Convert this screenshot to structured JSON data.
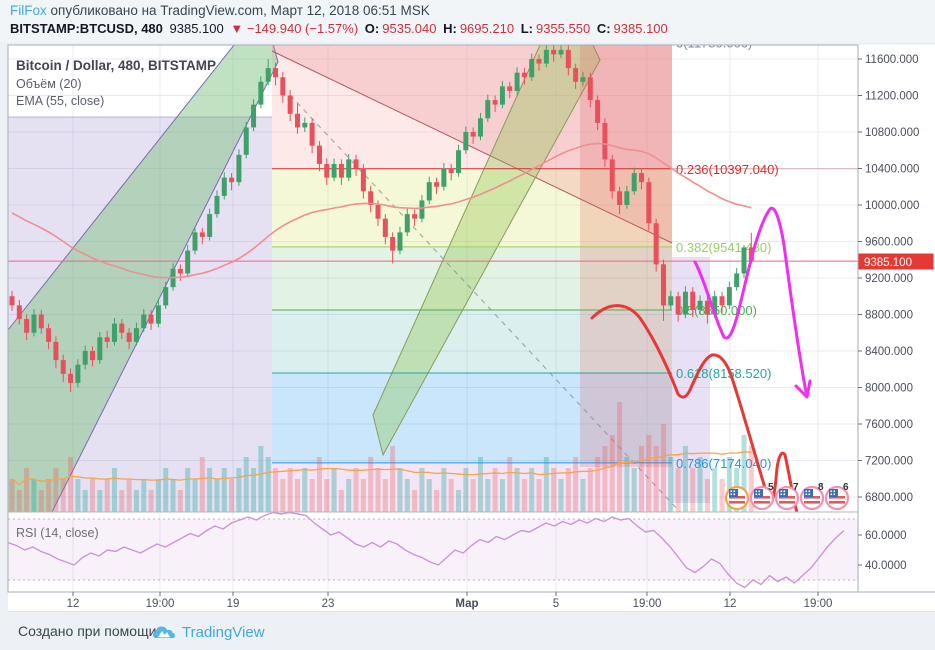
{
  "topbar": {
    "publish": {
      "author": "FilFox",
      "text": "опубликовано на TradingView.com, Март 12, 2018 06:51 MSK"
    },
    "symbol_line": {
      "symbol": "BITSTAMP:BTCUSD, 480",
      "price": "9385.100",
      "change": "▼ −149.940 (−1.57%)",
      "open_label": "O:",
      "open": "9535.040",
      "high_label": "H:",
      "high": "9695.210",
      "low_label": "L:",
      "low": "9355.550",
      "close_label": "C:",
      "close": "9385.100"
    }
  },
  "legend": {
    "title": "Bitcoin / Dollar, 480, BITSTAMP",
    "volume": "Объём (20)",
    "ema": "EMA (55, close)"
  },
  "rsi_label": "RSI (14, close)",
  "footer": {
    "created": "Создано при помощи",
    "brand": "TradingView"
  },
  "price_axis": {
    "ticks": [
      11600,
      11200,
      10800,
      10400,
      10000,
      9600,
      9200,
      8800,
      8400,
      8000,
      7600,
      7200,
      6800
    ],
    "current": 9385.1,
    "current_label": "9385.100",
    "badge_color": "#e53935"
  },
  "rsi_axis": [
    "60.0000",
    "40.0000"
  ],
  "time_axis": [
    "12",
    "19:00",
    "19",
    "23",
    "Мар",
    "5",
    "19:00",
    "12",
    "19:00"
  ],
  "fib_labels": [
    {
      "label": "0(11780.000)",
      "value": 11780.0,
      "color": "#808690"
    },
    {
      "label": "0.236(10397.040)",
      "value": 10397.04,
      "color": "#d32f2f"
    },
    {
      "label": "0.382(9541.480)",
      "value": 9541.48,
      "color": "#9ccc65"
    },
    {
      "label": "0.5(8850.000)",
      "value": 8850.0,
      "color": "#4caf50"
    },
    {
      "label": "0.618(8158.520)",
      "value": 8158.52,
      "color": "#26a69a"
    },
    {
      "label": "0.786(7174.040)",
      "value": 7174.04,
      "color": "#2196f3"
    }
  ],
  "event_badges": [
    "5",
    "7",
    "8",
    "6"
  ],
  "colors": {
    "up": "#3fa06a",
    "down": "#e8505b",
    "ema": "#ef8f8f",
    "vol_ma": "#f5a54a",
    "price_line": "#f06292",
    "rsi_line": "#ce93d8",
    "hand_red": "#e53935",
    "hand_magenta": "#ee2ff0",
    "lavender_zone": "rgba(136,120,200,0.22)",
    "green_channel": "rgba(118,190,120,0.45)",
    "pink_channel": "rgba(235,150,155,0.30)",
    "red_strip": "rgba(229,90,90,0.22)",
    "purple_strip": "rgba(140,100,200,0.20)"
  },
  "chart_data": {
    "type": "candlestick",
    "title": "Bitcoin / Dollar, 480, BITSTAMP",
    "symbol": "BITSTAMP:BTCUSD",
    "interval_minutes": 480,
    "ylim": [
      6600,
      11800
    ],
    "price_ticks": [
      11600,
      11200,
      10800,
      10400,
      10000,
      9600,
      9200,
      8800,
      8400,
      8000,
      7600,
      7200,
      6800
    ],
    "current_bar": {
      "open": 9535.04,
      "high": 9695.21,
      "low": 9355.55,
      "close": 9385.1,
      "change": -149.94,
      "change_pct": -1.57
    },
    "fib_retracement": [
      [
        0,
        11780.0
      ],
      [
        0.236,
        10397.04
      ],
      [
        0.382,
        9541.48
      ],
      [
        0.5,
        8850.0
      ],
      [
        0.618,
        8158.52
      ],
      [
        0.786,
        7174.04
      ]
    ],
    "ema": {
      "period": 55,
      "source": "close",
      "seed": 9950
    },
    "volume_ma_period": 20,
    "candles": [
      [
        9000,
        9060,
        8840,
        8900
      ],
      [
        8900,
        8960,
        8690,
        8750
      ],
      [
        8750,
        8800,
        8520,
        8600
      ],
      [
        8600,
        8860,
        8560,
        8800
      ],
      [
        8800,
        8850,
        8590,
        8650
      ],
      [
        8650,
        8700,
        8420,
        8500
      ],
      [
        8500,
        8560,
        8210,
        8300
      ],
      [
        8300,
        8360,
        8060,
        8150
      ],
      [
        8150,
        8210,
        7950,
        8050
      ],
      [
        8050,
        8310,
        8000,
        8250
      ],
      [
        8250,
        8460,
        8200,
        8400
      ],
      [
        8400,
        8450,
        8230,
        8300
      ],
      [
        8300,
        8610,
        8260,
        8550
      ],
      [
        8550,
        8620,
        8430,
        8500
      ],
      [
        8500,
        8760,
        8460,
        8700
      ],
      [
        8700,
        8750,
        8530,
        8600
      ],
      [
        8600,
        8650,
        8420,
        8500
      ],
      [
        8500,
        8710,
        8460,
        8650
      ],
      [
        8650,
        8860,
        8610,
        8800
      ],
      [
        8800,
        8850,
        8630,
        8700
      ],
      [
        8700,
        8960,
        8660,
        8900
      ],
      [
        8900,
        9160,
        8860,
        9100
      ],
      [
        9100,
        9360,
        9060,
        9300
      ],
      [
        9300,
        9350,
        9170,
        9250
      ],
      [
        9250,
        9560,
        9210,
        9500
      ],
      [
        9500,
        9760,
        9460,
        9700
      ],
      [
        9700,
        9750,
        9570,
        9650
      ],
      [
        9650,
        9960,
        9610,
        9900
      ],
      [
        9900,
        10160,
        9860,
        10100
      ],
      [
        10100,
        10360,
        10060,
        10300
      ],
      [
        10300,
        10350,
        10160,
        10250
      ],
      [
        10250,
        10610,
        10210,
        10550
      ],
      [
        10550,
        10910,
        10510,
        10850
      ],
      [
        10850,
        11160,
        10810,
        11100
      ],
      [
        11100,
        11410,
        11060,
        11350
      ],
      [
        11350,
        11600,
        11310,
        11500
      ],
      [
        11500,
        11560,
        11310,
        11400
      ],
      [
        11400,
        11460,
        11120,
        11200
      ],
      [
        11200,
        11260,
        10920,
        11000
      ],
      [
        11000,
        11110,
        10780,
        10850
      ],
      [
        10850,
        10960,
        10800,
        10900
      ],
      [
        10900,
        10950,
        10570,
        10650
      ],
      [
        10650,
        10700,
        10370,
        10450
      ],
      [
        10450,
        10510,
        10220,
        10300
      ],
      [
        10300,
        10510,
        10260,
        10450
      ],
      [
        10450,
        10500,
        10220,
        10300
      ],
      [
        10300,
        10560,
        10260,
        10500
      ],
      [
        10500,
        10550,
        10320,
        10400
      ],
      [
        10400,
        10450,
        10070,
        10150
      ],
      [
        10150,
        10210,
        9920,
        10000
      ],
      [
        10000,
        10050,
        9770,
        9850
      ],
      [
        9850,
        9900,
        9570,
        9650
      ],
      [
        9650,
        9700,
        9360,
        9500
      ],
      [
        9500,
        9760,
        9460,
        9700
      ],
      [
        9700,
        9960,
        9660,
        9900
      ],
      [
        9900,
        9950,
        9770,
        9850
      ],
      [
        9850,
        10110,
        9810,
        10050
      ],
      [
        10050,
        10310,
        10010,
        10250
      ],
      [
        10250,
        10300,
        10120,
        10200
      ],
      [
        10200,
        10460,
        10160,
        10400
      ],
      [
        10400,
        10450,
        10270,
        10350
      ],
      [
        10350,
        10660,
        10310,
        10600
      ],
      [
        10600,
        10860,
        10560,
        10800
      ],
      [
        10800,
        10850,
        10670,
        10750
      ],
      [
        10750,
        11010,
        10710,
        10950
      ],
      [
        10950,
        11210,
        10910,
        11150
      ],
      [
        11150,
        11200,
        11020,
        11100
      ],
      [
        11100,
        11360,
        11060,
        11300
      ],
      [
        11300,
        11350,
        11170,
        11250
      ],
      [
        11250,
        11510,
        11210,
        11450
      ],
      [
        11450,
        11500,
        11320,
        11400
      ],
      [
        11400,
        11660,
        11360,
        11600
      ],
      [
        11600,
        11650,
        11470,
        11550
      ],
      [
        11550,
        11786,
        11510,
        11700
      ],
      [
        11700,
        11750,
        11570,
        11650
      ],
      [
        11650,
        11780,
        11610,
        11700
      ],
      [
        11700,
        11750,
        11420,
        11500
      ],
      [
        11500,
        11550,
        11270,
        11350
      ],
      [
        11350,
        11460,
        11310,
        11400
      ],
      [
        11400,
        11450,
        11070,
        11150
      ],
      [
        11150,
        11200,
        10820,
        10900
      ],
      [
        10900,
        10950,
        10420,
        10500
      ],
      [
        10500,
        10550,
        10070,
        10150
      ],
      [
        10150,
        10200,
        9900,
        10000
      ],
      [
        10000,
        10210,
        9960,
        10150
      ],
      [
        10150,
        10410,
        10110,
        10350
      ],
      [
        10350,
        10400,
        10170,
        10250
      ],
      [
        10250,
        10300,
        9720,
        9800
      ],
      [
        9800,
        9850,
        9270,
        9350
      ],
      [
        9350,
        9400,
        8730,
        8900
      ],
      [
        8900,
        9060,
        8850,
        9000
      ],
      [
        9000,
        9050,
        8720,
        8800
      ],
      [
        8800,
        9110,
        8760,
        9050
      ],
      [
        9050,
        9100,
        8770,
        8850
      ],
      [
        8850,
        9010,
        8800,
        8950
      ],
      [
        8950,
        9000,
        8700,
        8800
      ],
      [
        8800,
        9060,
        8760,
        9000
      ],
      [
        9000,
        9050,
        8820,
        8900
      ],
      [
        8900,
        9160,
        8860,
        9100
      ],
      [
        9100,
        9310,
        9060,
        9250
      ],
      [
        9250,
        9560,
        9200,
        9535
      ],
      [
        9535,
        9695,
        9356,
        9385
      ]
    ],
    "volumes": [
      3,
      2,
      4,
      3,
      2,
      3,
      4,
      3,
      5,
      3,
      2,
      3,
      2,
      3,
      4,
      2,
      3,
      2,
      3,
      2,
      3,
      4,
      3,
      2,
      4,
      3,
      5,
      4,
      3,
      4,
      3,
      4,
      5,
      4,
      6,
      5,
      4,
      3,
      4,
      3,
      4,
      3,
      5,
      3,
      4,
      2,
      3,
      4,
      3,
      5,
      4,
      3,
      6,
      4,
      3,
      2,
      4,
      3,
      2,
      4,
      3,
      2,
      4,
      3,
      5,
      3,
      4,
      3,
      5,
      4,
      3,
      4,
      3,
      5,
      4,
      3,
      4,
      5,
      3,
      4,
      5,
      6,
      7,
      10,
      5,
      4,
      6,
      7,
      6,
      8,
      5,
      4,
      6,
      4,
      5,
      3,
      4,
      3,
      5,
      4,
      7,
      6
    ],
    "rsi": {
      "period": 14,
      "source": "close",
      "ticks": [
        60,
        40
      ],
      "bands": [
        70,
        30
      ],
      "values": [
        55,
        53,
        50,
        52,
        49,
        47,
        44,
        42,
        40,
        45,
        48,
        46,
        50,
        49,
        52,
        50,
        48,
        51,
        54,
        52,
        55,
        58,
        61,
        59,
        63,
        66,
        64,
        68,
        70,
        72,
        70,
        73,
        75,
        74,
        75,
        74,
        73,
        68,
        64,
        60,
        62,
        58,
        54,
        52,
        55,
        52,
        56,
        54,
        50,
        47,
        45,
        42,
        40,
        45,
        50,
        48,
        53,
        57,
        55,
        59,
        57,
        60,
        63,
        62,
        65,
        68,
        66,
        69,
        67,
        70,
        68,
        71,
        69,
        72,
        70,
        71,
        66,
        62,
        63,
        58,
        52,
        45,
        38,
        35,
        39,
        44,
        41,
        34,
        28,
        25,
        30,
        27,
        33,
        29,
        32,
        28,
        33,
        38,
        45,
        52,
        58,
        63
      ]
    }
  }
}
